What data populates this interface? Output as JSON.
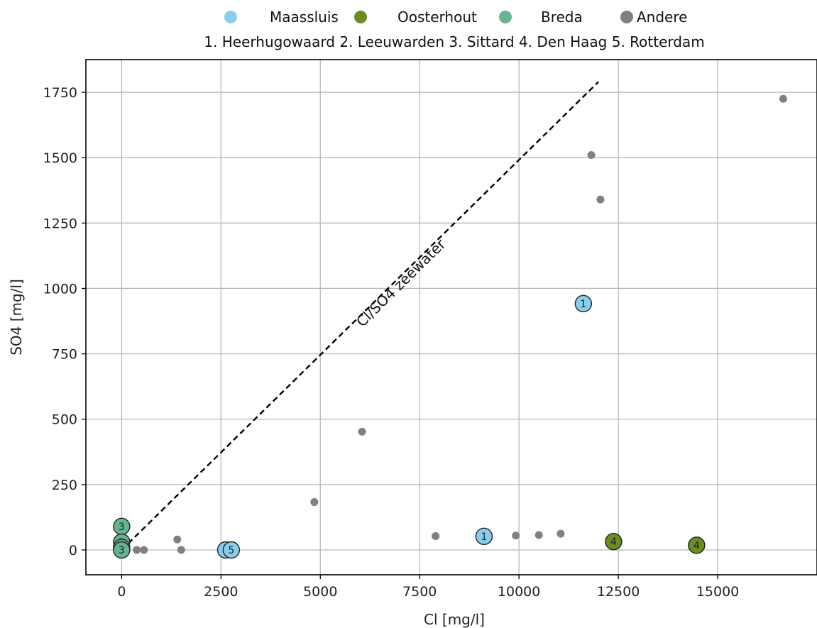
{
  "chart_data": {
    "type": "scatter",
    "title": "",
    "xlabel": "Cl [mg/l]",
    "ylabel": "SO4 [mg/l]",
    "xlim": [
      -900,
      17500
    ],
    "ylim": [
      -95,
      1875
    ],
    "xticks": [
      0,
      2500,
      5000,
      7500,
      10000,
      12500,
      15000
    ],
    "yticks": [
      0,
      250,
      500,
      750,
      1000,
      1250,
      1500,
      1750
    ],
    "grid": true,
    "legend": {
      "placement": "top-center-outside",
      "entries": [
        {
          "name": "Maassluis",
          "color": "#87ceeb"
        },
        {
          "name": "Oosterhout",
          "color": "#6b8e23"
        },
        {
          "name": "Breda",
          "color": "#66b491"
        },
        {
          "name": "Andere",
          "color": "#808080"
        }
      ],
      "subtitle": "1. Heerhugowaard  2. Leeuwarden  3. Sittard  4. Den Haag  5. Rotterdam"
    },
    "reference_line": {
      "label": "Cl/SO4 zeewater",
      "x": [
        0,
        12000
      ],
      "y": [
        0,
        1790
      ],
      "style": "dashed"
    },
    "series": [
      {
        "name": "Maassluis",
        "color": "#87ceeb",
        "points": [
          {
            "x": 11620,
            "y": 942,
            "label": "1"
          },
          {
            "x": 9120,
            "y": 52,
            "label": "1"
          },
          {
            "x": 2620,
            "y": 0,
            "label": "5"
          },
          {
            "x": 2760,
            "y": 0,
            "label": "5"
          }
        ]
      },
      {
        "name": "Oosterhout",
        "color": "#6b8e23",
        "points": [
          {
            "x": 12380,
            "y": 32,
            "label": "4"
          },
          {
            "x": 14470,
            "y": 18,
            "label": "4"
          },
          {
            "x": 0,
            "y": 3,
            "label": "3"
          }
        ]
      },
      {
        "name": "Breda",
        "color": "#66b491",
        "points": [
          {
            "x": 0,
            "y": 90,
            "label": "3"
          },
          {
            "x": 0,
            "y": 30,
            "label": "3"
          },
          {
            "x": 0,
            "y": 10,
            "label": "3"
          },
          {
            "x": 0,
            "y": 0,
            "label": "3"
          }
        ]
      },
      {
        "name": "Andere",
        "color": "#808080",
        "points": [
          {
            "x": 16650,
            "y": 1725
          },
          {
            "x": 11820,
            "y": 1510
          },
          {
            "x": 12050,
            "y": 1340
          },
          {
            "x": 6050,
            "y": 452
          },
          {
            "x": 4850,
            "y": 183
          },
          {
            "x": 7900,
            "y": 53
          },
          {
            "x": 9920,
            "y": 55
          },
          {
            "x": 10500,
            "y": 57
          },
          {
            "x": 11050,
            "y": 62
          },
          {
            "x": 1400,
            "y": 40
          },
          {
            "x": 380,
            "y": 0
          },
          {
            "x": 560,
            "y": 0
          },
          {
            "x": 1500,
            "y": 0
          }
        ]
      }
    ]
  }
}
